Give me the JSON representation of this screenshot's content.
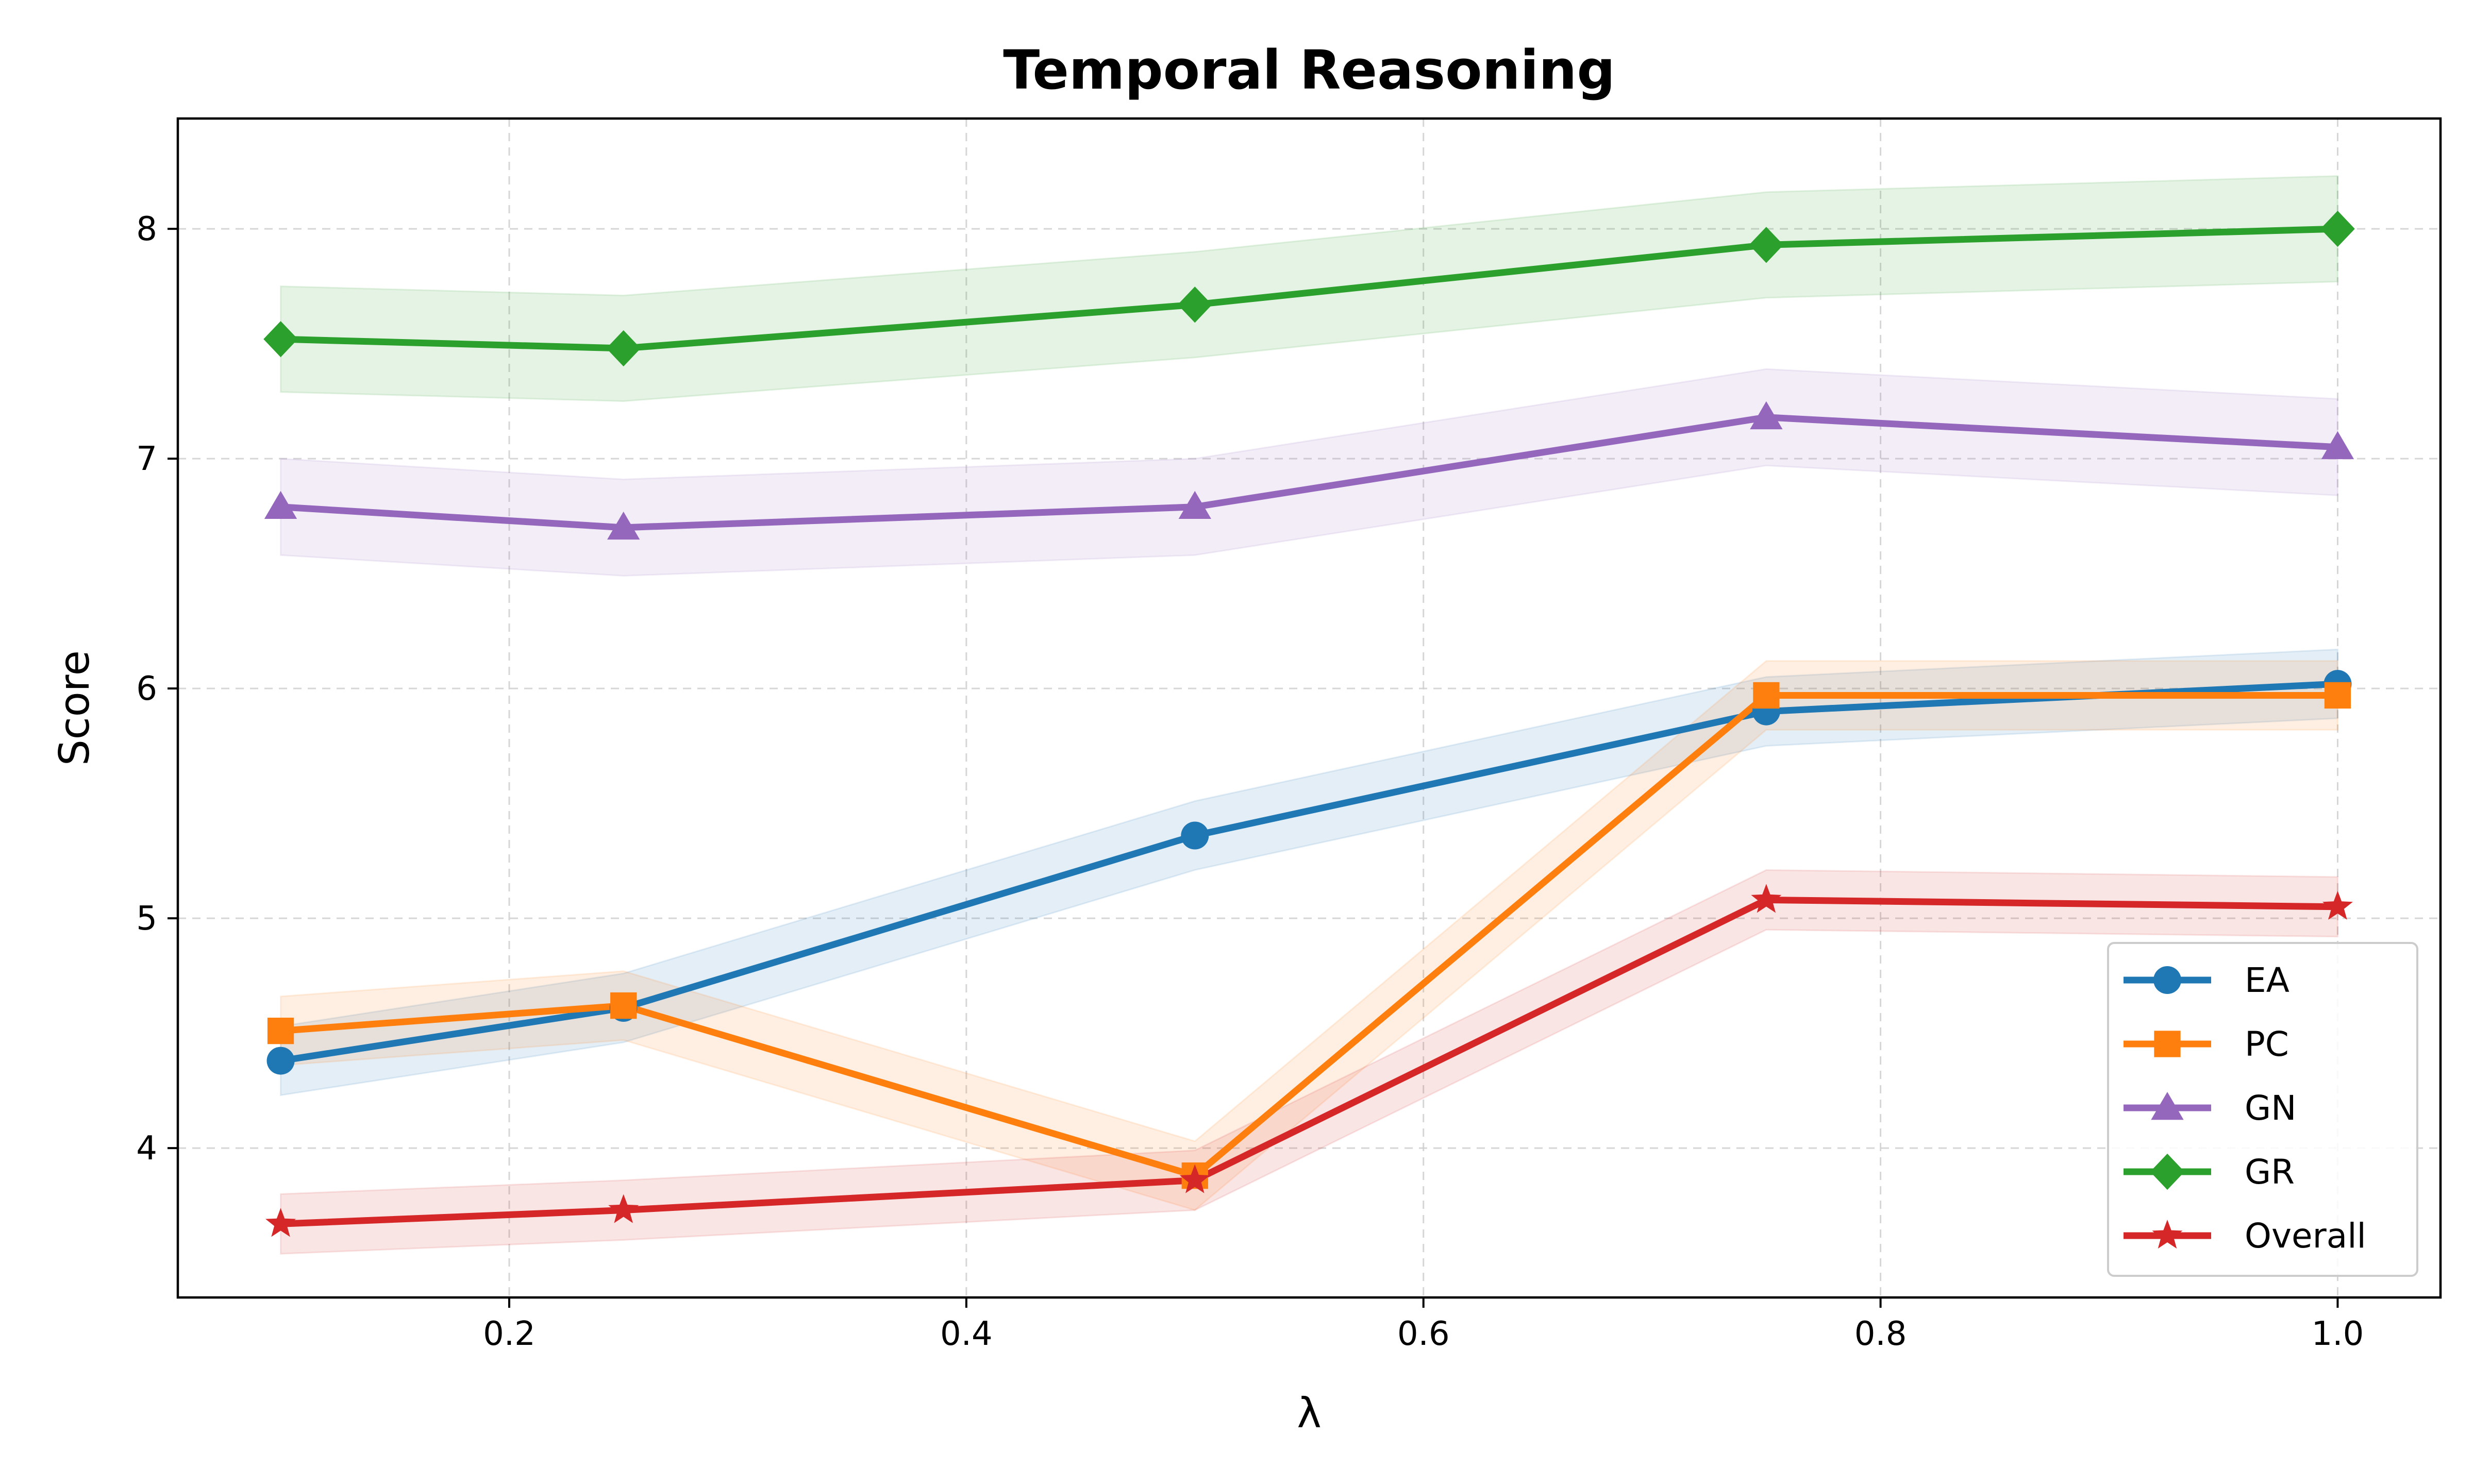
{
  "chart_data": {
    "type": "line",
    "title": "Temporal Reasoning",
    "xlabel": "λ",
    "ylabel": "Score",
    "xlim": [
      0.055,
      1.045
    ],
    "ylim": [
      3.35,
      8.48
    ],
    "x_ticks": [
      0.2,
      0.4,
      0.6,
      0.8,
      1.0
    ],
    "x_tick_labels": [
      "0.2",
      "0.4",
      "0.6",
      "0.8",
      "1.0"
    ],
    "y_ticks": [
      4,
      5,
      6,
      7,
      8
    ],
    "y_tick_labels": [
      "4",
      "5",
      "6",
      "7",
      "8"
    ],
    "grid": true,
    "legend_position": "lower-right",
    "x": [
      0.1,
      0.25,
      0.5,
      0.75,
      1.0
    ],
    "series": [
      {
        "name": "EA",
        "marker": "circle",
        "color": "#1f77b4",
        "values": [
          4.38,
          4.61,
          5.36,
          5.9,
          6.02
        ],
        "band": 0.15
      },
      {
        "name": "PC",
        "marker": "square",
        "color": "#ff7f0e",
        "values": [
          4.51,
          4.62,
          3.88,
          5.97,
          5.97
        ],
        "band": 0.15
      },
      {
        "name": "GN",
        "marker": "triangle",
        "color": "#9467bd",
        "values": [
          6.79,
          6.7,
          6.79,
          7.18,
          7.05
        ],
        "band": 0.21
      },
      {
        "name": "GR",
        "marker": "diamond",
        "color": "#2ca02c",
        "values": [
          7.52,
          7.48,
          7.67,
          7.93,
          8.0
        ],
        "band": 0.23
      },
      {
        "name": "Overall",
        "marker": "star",
        "color": "#d62728",
        "values": [
          3.67,
          3.73,
          3.86,
          5.08,
          5.05
        ],
        "band": 0.13
      }
    ]
  }
}
